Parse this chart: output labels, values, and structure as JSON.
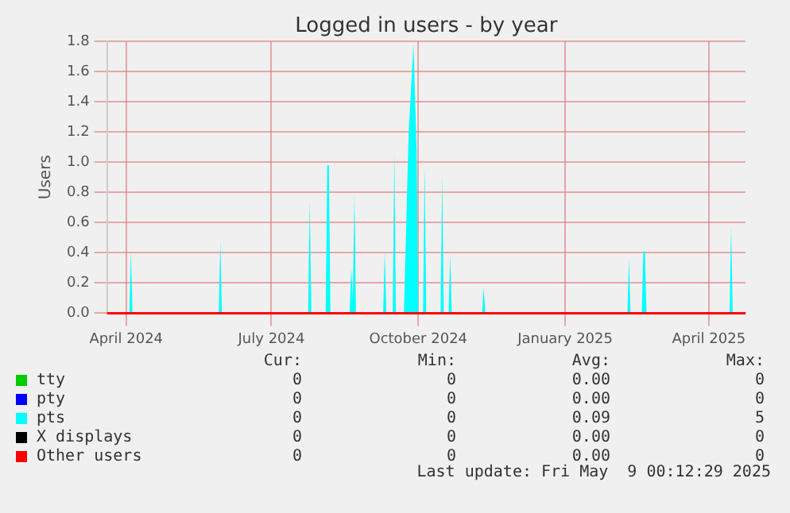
{
  "chart_data": {
    "type": "area",
    "title": "Logged in users - by year",
    "ylabel": "Users",
    "xlim": [
      "2024-04-04",
      "2025-05-09"
    ],
    "xticks": [
      {
        "value": "2024-04-16",
        "label": "April 2024"
      },
      {
        "value": "2024-07-16",
        "label": "July 2024"
      },
      {
        "value": "2024-10-16",
        "label": "October 2024"
      },
      {
        "value": "2025-01-16",
        "label": "January 2025"
      },
      {
        "value": "2025-04-16",
        "label": "April 2025"
      }
    ],
    "ylim": [
      0,
      1.8
    ],
    "yticks": [
      {
        "value": 0,
        "label": "0.0"
      },
      {
        "value": 0.2,
        "label": "0.2"
      },
      {
        "value": 0.4,
        "label": "0.4"
      },
      {
        "value": 0.6,
        "label": "0.6"
      },
      {
        "value": 0.8,
        "label": "0.8"
      },
      {
        "value": 1,
        "label": "1.0"
      },
      {
        "value": 1.2,
        "label": "1.2"
      },
      {
        "value": 1.4,
        "label": "1.4"
      },
      {
        "value": 1.6,
        "label": "1.6"
      },
      {
        "value": 1.8,
        "label": "1.8"
      }
    ],
    "grid": true,
    "legend": "bottom",
    "series": [
      {
        "name": "tty",
        "color": "#00cc00"
      },
      {
        "name": "pty",
        "color": "#0000ff"
      },
      {
        "name": "pts",
        "color": "#00ffff",
        "x": [
          "2024-04-04",
          "2024-04-18",
          "2024-04-19",
          "2024-04-20",
          "2024-06-13",
          "2024-06-14",
          "2024-06-15",
          "2024-08-08",
          "2024-08-09",
          "2024-08-10",
          "2024-08-19",
          "2024-08-20",
          "2024-08-21",
          "2024-08-22",
          "2024-09-03",
          "2024-09-04",
          "2024-09-05",
          "2024-09-06",
          "2024-09-07",
          "2024-09-24",
          "2024-09-25",
          "2024-09-26",
          "2024-09-30",
          "2024-10-01",
          "2024-10-02",
          "2024-10-07",
          "2024-10-08",
          "2024-10-10",
          "2024-10-13",
          "2024-10-15",
          "2024-10-16",
          "2024-10-19",
          "2024-10-20",
          "2024-10-21",
          "2024-10-30",
          "2024-10-31",
          "2024-11-01",
          "2024-11-04",
          "2024-11-05",
          "2024-11-06",
          "2024-11-25",
          "2024-11-26",
          "2024-11-27",
          "2025-02-24",
          "2025-02-25",
          "2025-02-26",
          "2025-03-05",
          "2025-03-06",
          "2025-03-07",
          "2025-03-08",
          "2025-04-29",
          "2025-04-30",
          "2025-05-01",
          "2025-05-09"
        ],
        "values": [
          0,
          0,
          0.41,
          0,
          0,
          0.48,
          0,
          0,
          0.75,
          0,
          0,
          0.98,
          0.98,
          0,
          0,
          0.3,
          0.1,
          0.79,
          0,
          0,
          0.41,
          0,
          0,
          1.06,
          0,
          0,
          0.4,
          1.2,
          1.78,
          1.08,
          0,
          0,
          0.98,
          0,
          0,
          0.91,
          0,
          0,
          0.39,
          0,
          0,
          0.17,
          0,
          0,
          0.36,
          0,
          0,
          0.41,
          0.41,
          0,
          0,
          0.57,
          0,
          0
        ]
      },
      {
        "name": "X displays",
        "color": "#000000"
      },
      {
        "name": "Other users",
        "type": "line",
        "color": "#ff0000",
        "x": [
          "2024-04-04",
          "2025-05-09"
        ],
        "values": [
          0,
          0
        ]
      }
    ],
    "annotations": [
      "Cur:",
      "Min:",
      "Avg:",
      "Max:",
      "0",
      "0",
      "0.00",
      "0",
      "0",
      "0",
      "0.00",
      "0",
      "0",
      "0",
      "0.09",
      "5",
      "0",
      "0",
      "0.00",
      "0",
      "0",
      "0",
      "0.00",
      "0",
      "Last update: Fri May  9 00:12:29 2025"
    ]
  }
}
